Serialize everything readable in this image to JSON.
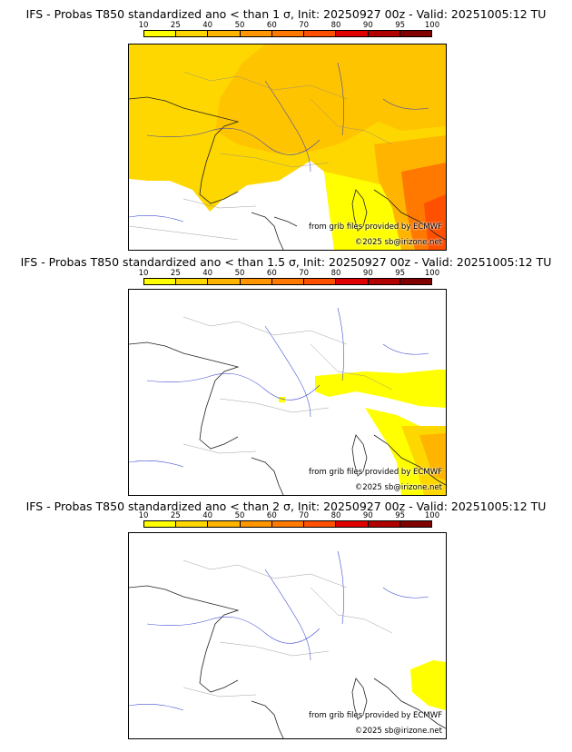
{
  "colorbar": {
    "labels": [
      "10",
      "25",
      "40",
      "50",
      "60",
      "70",
      "80",
      "90",
      "95",
      "100"
    ],
    "colors": [
      "#ffff00",
      "#ffd700",
      "#ffb400",
      "#ff9600",
      "#ff7800",
      "#ff5000",
      "#e00000",
      "#b00000",
      "#800000"
    ]
  },
  "panels": [
    {
      "title": "IFS - Probas T850  standardized ano < than 1 σ, Init: 20250927 00z - Valid: 20251005:12 TU",
      "credit_source": "from grib files provided by ECMWF",
      "credit_copyright": "©2025 sb@irizone.net",
      "sigma": 1
    },
    {
      "title": "IFS - Probas T850  standardized ano < than 1.5 σ, Init: 20250927 00z - Valid: 20251005:12 TU",
      "credit_source": "from grib files provided by ECMWF",
      "credit_copyright": "©2025 sb@irizone.net",
      "sigma": 1.5
    },
    {
      "title": "IFS - Probas T850  standardized ano < than 2 σ, Init: 20250927 00z - Valid: 20251005:12 TU",
      "credit_source": "from grib files provided by ECMWF",
      "credit_copyright": "©2025 sb@irizone.net",
      "sigma": 2
    }
  ]
}
